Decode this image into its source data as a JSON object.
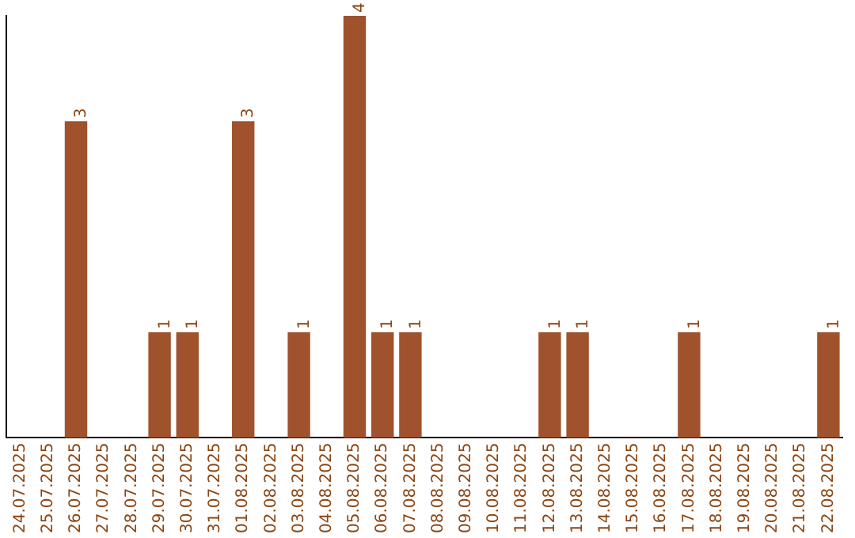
{
  "chart_data": {
    "type": "bar",
    "categories": [
      "24.07.2025",
      "25.07.2025",
      "26.07.2025",
      "27.07.2025",
      "28.07.2025",
      "29.07.2025",
      "30.07.2025",
      "31.07.2025",
      "01.08.2025",
      "02.08.2025",
      "03.08.2025",
      "04.08.2025",
      "05.08.2025",
      "06.08.2025",
      "07.08.2025",
      "08.08.2025",
      "09.08.2025",
      "10.08.2025",
      "11.08.2025",
      "12.08.2025",
      "13.08.2025",
      "14.08.2025",
      "15.08.2025",
      "16.08.2025",
      "17.08.2025",
      "18.08.2025",
      "19.08.2025",
      "20.08.2025",
      "21.08.2025",
      "22.08.2025"
    ],
    "values": [
      0,
      0,
      3,
      0,
      0,
      1,
      1,
      0,
      3,
      0,
      1,
      0,
      4,
      1,
      1,
      0,
      0,
      0,
      0,
      1,
      1,
      0,
      0,
      0,
      1,
      0,
      0,
      0,
      0,
      1
    ],
    "value_labels": [
      null,
      null,
      "3",
      null,
      null,
      "1",
      "1",
      null,
      "3",
      null,
      "1",
      null,
      "4",
      "1",
      "1",
      null,
      null,
      null,
      null,
      "1",
      "1",
      null,
      null,
      null,
      "1",
      null,
      null,
      null,
      null,
      "1"
    ],
    "color": "#a0522d",
    "tick_labels": "x",
    "grid": false,
    "legend": false
  }
}
